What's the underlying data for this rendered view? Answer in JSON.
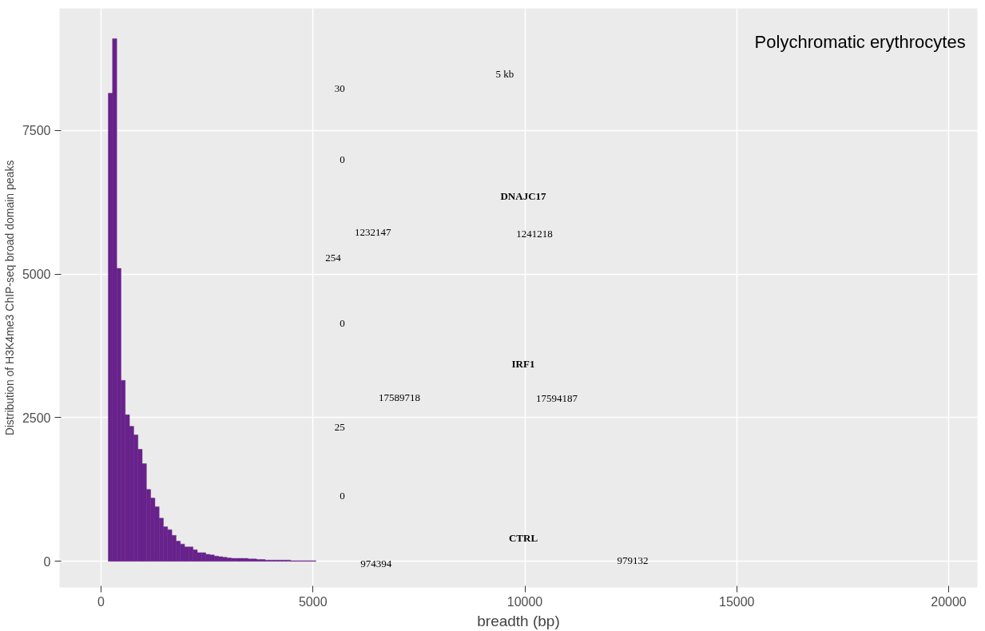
{
  "chart_data": {
    "type": "histogram",
    "xlabel": "breadth (bp)",
    "ylabel": "Distribution of H3K4me3 ChIP-seq broad domain peaks",
    "color": "#68228b",
    "bins": [
      170,
      270,
      370,
      470,
      570,
      670,
      770,
      870,
      970,
      1070,
      1170,
      1270,
      1370,
      1470,
      1570,
      1670,
      1770,
      1870,
      1970,
      2070,
      2170,
      2270,
      2370,
      2470,
      2570,
      2670,
      2770,
      2870,
      2970,
      3070,
      3170,
      3270,
      3370,
      3470,
      3570,
      3670,
      3770,
      3870,
      3970,
      4070,
      4170,
      4270,
      4370,
      4470,
      4570,
      4670,
      4770,
      4870,
      4970,
      5070
    ],
    "values": [
      8150,
      9100,
      5100,
      3150,
      2550,
      2350,
      2200,
      1950,
      1700,
      1250,
      1100,
      950,
      750,
      600,
      550,
      450,
      350,
      300,
      250,
      250,
      200,
      150,
      150,
      120,
      110,
      90,
      80,
      70,
      60,
      50,
      50,
      50,
      50,
      40,
      40,
      30,
      30,
      20,
      20,
      20,
      20,
      20,
      20,
      10,
      10,
      10,
      10,
      10,
      10
    ],
    "xlim": [
      -981,
      20679
    ],
    "ylim": [
      -456,
      9627
    ],
    "xticks": [
      0,
      5000,
      10000,
      15000,
      20000
    ],
    "yticks": [
      0,
      2500,
      5000,
      7500
    ],
    "grid": true,
    "annotations": [
      "Polychromatic erythrocytes",
      "5 kb",
      "30",
      "0",
      "DNAJC17",
      "1232147",
      "1241218",
      "254",
      "0",
      "IRF1",
      "17589718",
      "17594187",
      "25",
      "0",
      "CTRL",
      "974394",
      "979132"
    ]
  }
}
